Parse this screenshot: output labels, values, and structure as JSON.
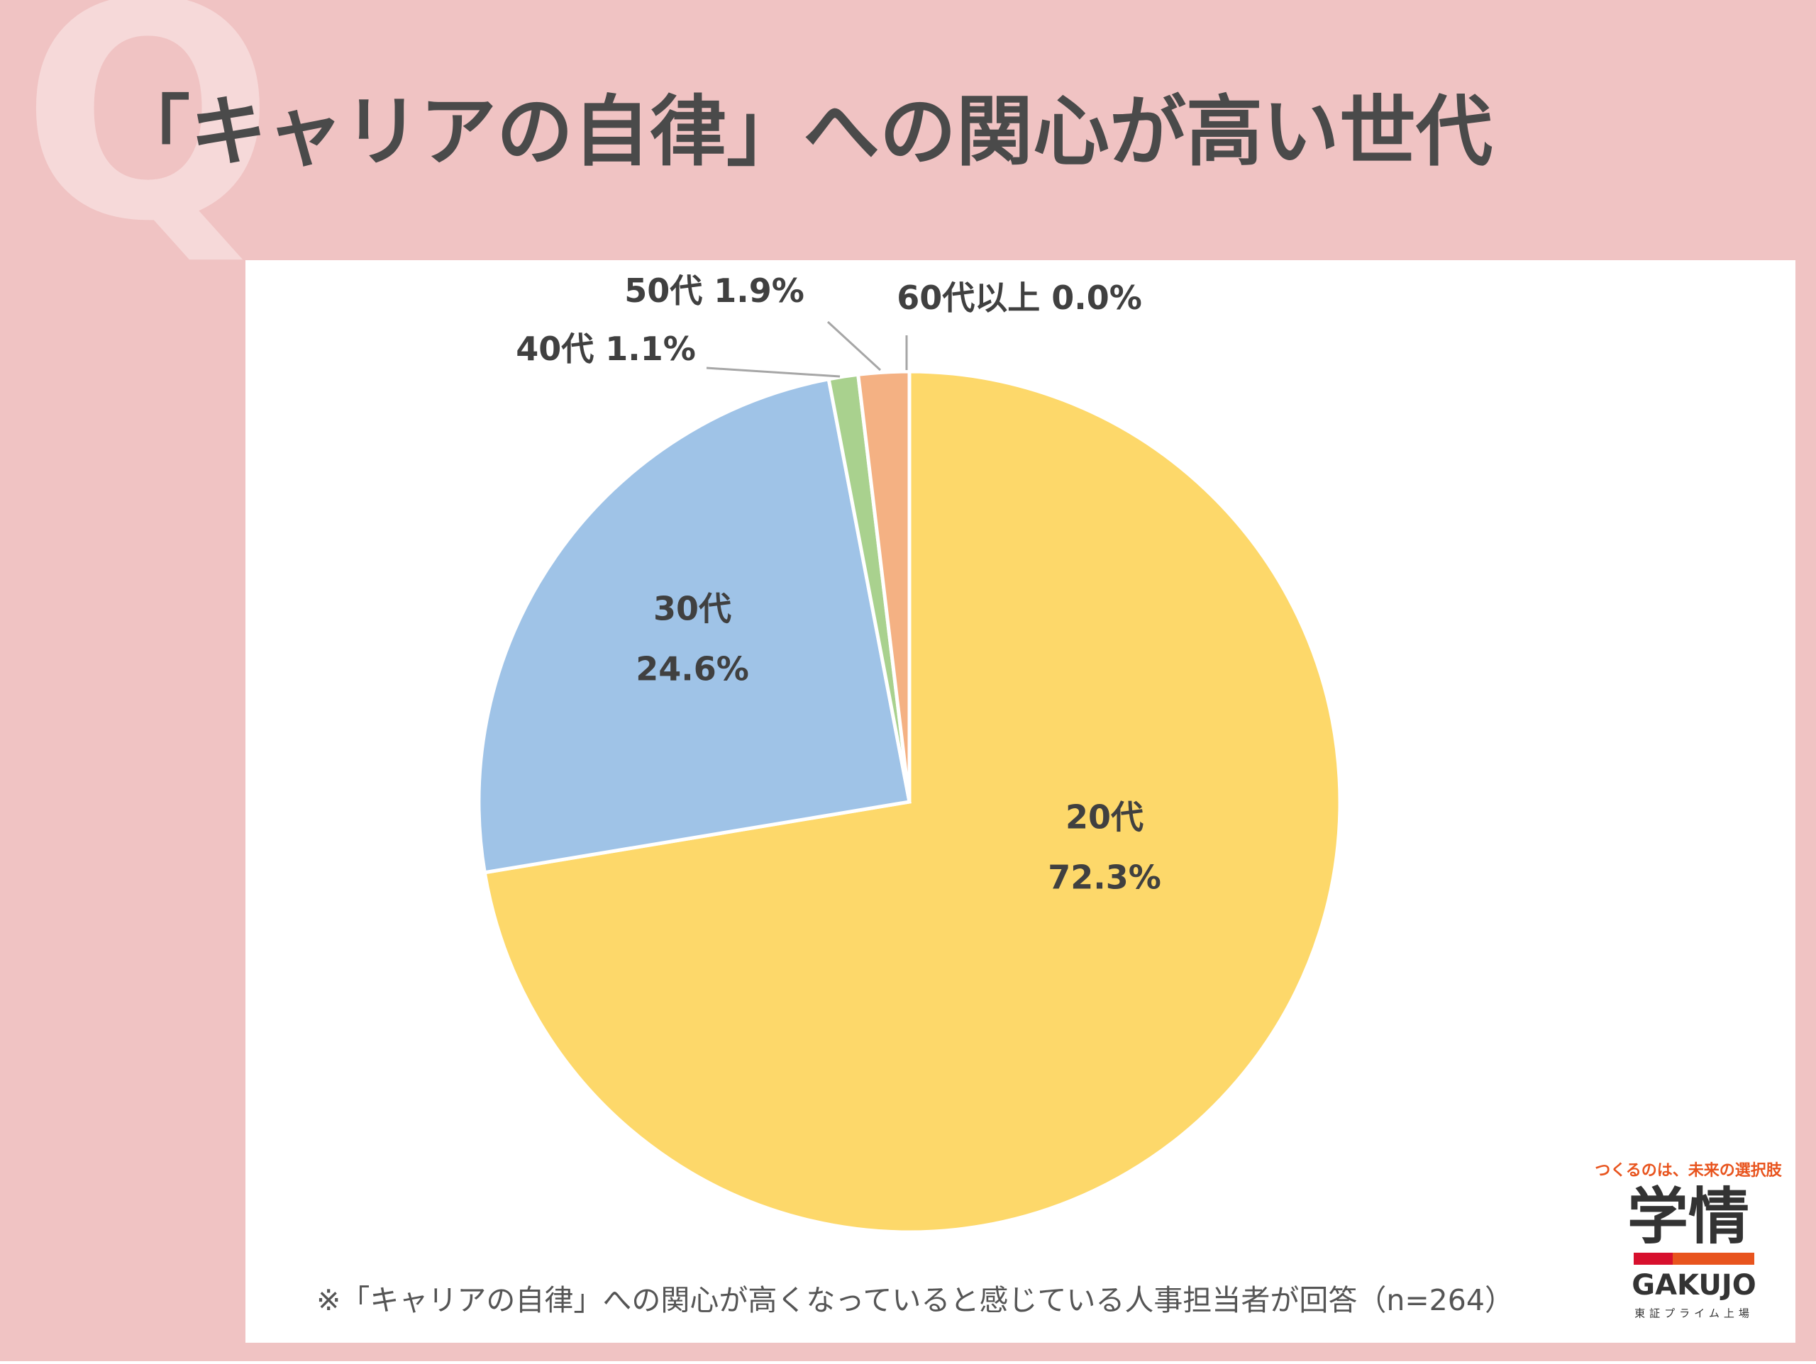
{
  "watermark": "Q",
  "chart_data": {
    "type": "pie",
    "title": "「キャリアの自律」への関心が高い世代",
    "categories": [
      "20代",
      "30代",
      "40代",
      "50代",
      "60代以上"
    ],
    "values": [
      72.3,
      24.6,
      1.1,
      1.9,
      0.0
    ],
    "value_labels": [
      "72.3%",
      "24.6%",
      "1.1%",
      "1.9%",
      "0.0%"
    ],
    "colors": [
      "#fdd86a",
      "#9fc3e7",
      "#a9d18e",
      "#f4b183",
      "#c9c9c9"
    ],
    "note": "※「キャリアの自律」への関心が高くなっていると感じている人事担当者が回答（n=264）"
  },
  "logo": {
    "tagline": "つくるのは、未来の選択肢",
    "name": "学情",
    "roman": "GAKUJO",
    "listing": "東証プライム上場"
  }
}
